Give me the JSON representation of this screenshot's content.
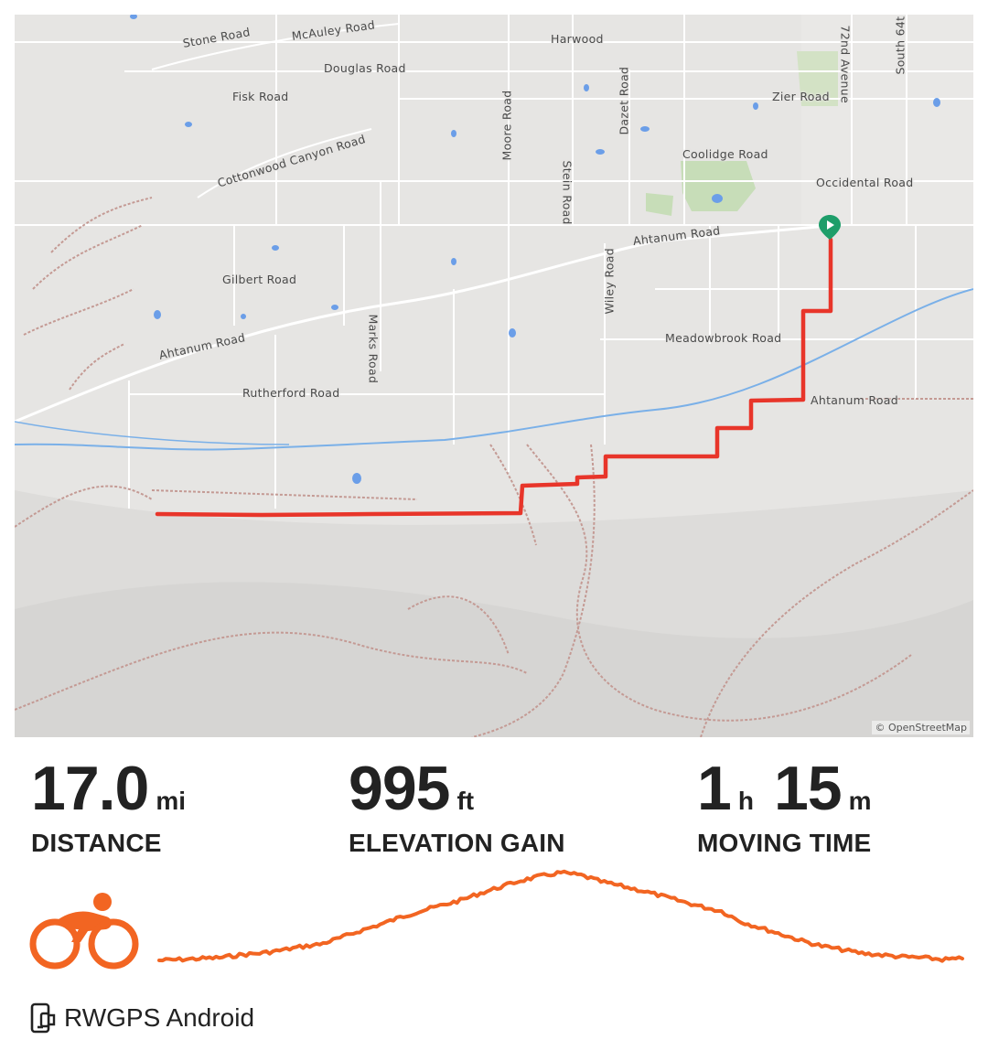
{
  "map": {
    "attribution": "© OpenStreetMap",
    "road_labels": [
      {
        "text": "Stone Road"
      },
      {
        "text": "McAuley Road"
      },
      {
        "text": "Harwood"
      },
      {
        "text": "Douglas Road"
      },
      {
        "text": "Fisk Road"
      },
      {
        "text": "Cottonwood Canyon Road"
      },
      {
        "text": "Moore Road"
      },
      {
        "text": "Stein Road"
      },
      {
        "text": "Dazet Road"
      },
      {
        "text": "72nd Avenue"
      },
      {
        "text": "South 64t"
      },
      {
        "text": "Zier Road"
      },
      {
        "text": "Coolidge Road"
      },
      {
        "text": "Occidental Road"
      },
      {
        "text": "Ahtanum Road"
      },
      {
        "text": "Gilbert Road"
      },
      {
        "text": "Marks Road"
      },
      {
        "text": "Wiley Road"
      },
      {
        "text": "Ahtanum Road"
      },
      {
        "text": "Meadowbrook Road"
      },
      {
        "text": "Rutherford Road"
      },
      {
        "text": "Ahtanum Road"
      }
    ],
    "route_color": "#e8352a",
    "start_marker_color": "#1e9e6a"
  },
  "stats": {
    "distance": {
      "value": "17.0",
      "unit": "mi",
      "label": "DISTANCE"
    },
    "elevation": {
      "value": "995",
      "unit": "ft",
      "label": "ELEVATION GAIN"
    },
    "moving_time": {
      "hours": "1",
      "hours_unit": "h",
      "minutes": "15",
      "minutes_unit": "m",
      "label": "MOVING TIME"
    }
  },
  "activity": {
    "icon": "cycling-icon",
    "color": "#f26522",
    "elevation_profile": [
      0.02,
      0.03,
      0.04,
      0.05,
      0.08,
      0.1,
      0.13,
      0.17,
      0.2,
      0.27,
      0.35,
      0.42,
      0.5,
      0.57,
      0.63,
      0.69,
      0.77,
      0.84,
      0.91,
      0.96,
      1.0,
      0.97,
      0.9,
      0.85,
      0.8,
      0.74,
      0.68,
      0.62,
      0.57,
      0.45,
      0.38,
      0.31,
      0.24,
      0.18,
      0.14,
      0.1,
      0.08,
      0.06,
      0.05,
      0.03,
      0.04
    ]
  },
  "source": {
    "icon": "device-sync-icon",
    "label": "RWGPS Android"
  }
}
